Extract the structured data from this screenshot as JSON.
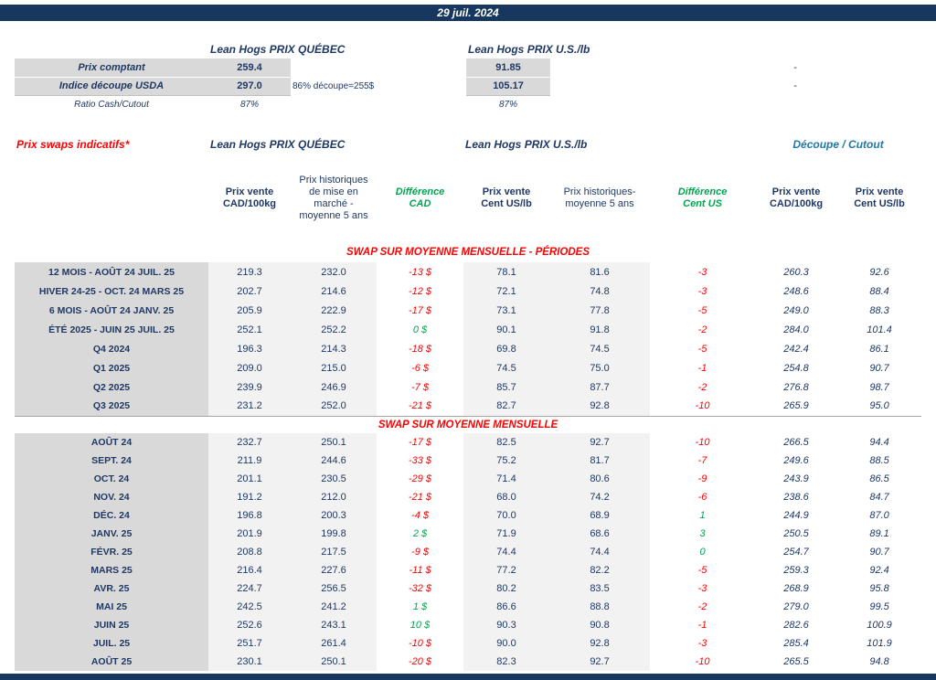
{
  "colors": {
    "navy": "#1F3864",
    "banner": "#17375E",
    "red": "#FF0000",
    "green": "#00A550",
    "teal": "#2179A5",
    "label-bg": "#D9D9D9",
    "cell-bg": "#F2F2F2",
    "rule": "#A6A6A6"
  },
  "banner": {
    "date": "29 juil. 2024"
  },
  "spot": {
    "quebec_title": "Lean Hogs PRIX QUÉBEC",
    "us_title": "Lean Hogs PRIX U.S./lb",
    "rows": [
      {
        "label": "Prix comptant",
        "qc": "259.4",
        "note": "",
        "us": "91.85",
        "dash": "-"
      },
      {
        "label": "Indice découpe USDA",
        "qc": "297.0",
        "note": "86% découpe=255$",
        "us": "105.17",
        "dash": "-"
      },
      {
        "label": "Ratio Cash/Cutout",
        "qc": "87%",
        "note": "",
        "us": "87%",
        "dash": ""
      }
    ]
  },
  "swaps": {
    "title": "Prix swaps indicatifs*",
    "quebec_title": "Lean Hogs PRIX QUÉBEC",
    "us_title": "Lean Hogs PRIX U.S./lb",
    "cutout_title": "Découpe / Cutout",
    "columns": [
      "Prix vente\nCAD/100kg",
      "Prix historiques\nde mise en\nmarché -\nmoyenne 5 ans",
      "Différence\nCAD",
      "Prix vente\nCent US/lb",
      "Prix historiques-\nmoyenne 5 ans",
      "Différence\nCent US",
      "Prix vente\nCAD/100kg",
      "Prix vente\nCent US/lb"
    ],
    "sections": [
      {
        "header": "SWAP SUR MOYENNE MENSUELLE - PÉRIODES",
        "rows": [
          {
            "label": "12 MOIS - AOÛT 24 JUIL. 25",
            "qc_sell": "219.3",
            "qc_hist": "232.0",
            "diff_cad": "-13 $",
            "us_sell": "78.1",
            "us_hist": "81.6",
            "diff_us": "-3",
            "cut_cad": "260.3",
            "cut_us": "92.6"
          },
          {
            "label": "HIVER 24-25 - OCT. 24 MARS 25",
            "qc_sell": "202.7",
            "qc_hist": "214.6",
            "diff_cad": "-12 $",
            "us_sell": "72.1",
            "us_hist": "74.8",
            "diff_us": "-3",
            "cut_cad": "248.6",
            "cut_us": "88.4"
          },
          {
            "label": "6 MOIS - AOÛT 24 JANV. 25",
            "qc_sell": "205.9",
            "qc_hist": "222.9",
            "diff_cad": "-17 $",
            "us_sell": "73.1",
            "us_hist": "77.8",
            "diff_us": "-5",
            "cut_cad": "249.0",
            "cut_us": "88.3"
          },
          {
            "label": "ÉTÉ 2025 - JUIN 25 JUIL. 25",
            "qc_sell": "252.1",
            "qc_hist": "252.2",
            "diff_cad": "0 $",
            "us_sell": "90.1",
            "us_hist": "91.8",
            "diff_us": "-2",
            "cut_cad": "284.0",
            "cut_us": "101.4"
          },
          {
            "label": "Q4 2024",
            "qc_sell": "196.3",
            "qc_hist": "214.3",
            "diff_cad": "-18 $",
            "us_sell": "69.8",
            "us_hist": "74.5",
            "diff_us": "-5",
            "cut_cad": "242.4",
            "cut_us": "86.1"
          },
          {
            "label": "Q1 2025",
            "qc_sell": "209.0",
            "qc_hist": "215.0",
            "diff_cad": "-6 $",
            "us_sell": "74.5",
            "us_hist": "75.0",
            "diff_us": "-1",
            "cut_cad": "254.8",
            "cut_us": "90.7"
          },
          {
            "label": "Q2 2025",
            "qc_sell": "239.9",
            "qc_hist": "246.9",
            "diff_cad": "-7 $",
            "us_sell": "85.7",
            "us_hist": "87.7",
            "diff_us": "-2",
            "cut_cad": "276.8",
            "cut_us": "98.7"
          },
          {
            "label": "Q3 2025",
            "qc_sell": "231.2",
            "qc_hist": "252.0",
            "diff_cad": "-21 $",
            "us_sell": "82.7",
            "us_hist": "92.8",
            "diff_us": "-10",
            "cut_cad": "265.9",
            "cut_us": "95.0"
          }
        ]
      },
      {
        "header": "SWAP SUR MOYENNE MENSUELLE",
        "rows": [
          {
            "label": "AOÛT 24",
            "qc_sell": "232.7",
            "qc_hist": "250.1",
            "diff_cad": "-17 $",
            "us_sell": "82.5",
            "us_hist": "92.7",
            "diff_us": "-10",
            "cut_cad": "266.5",
            "cut_us": "94.4"
          },
          {
            "label": "SEPT. 24",
            "qc_sell": "211.9",
            "qc_hist": "244.6",
            "diff_cad": "-33 $",
            "us_sell": "75.2",
            "us_hist": "81.7",
            "diff_us": "-7",
            "cut_cad": "249.6",
            "cut_us": "88.5"
          },
          {
            "label": "OCT. 24",
            "qc_sell": "201.1",
            "qc_hist": "230.5",
            "diff_cad": "-29 $",
            "us_sell": "71.4",
            "us_hist": "80.6",
            "diff_us": "-9",
            "cut_cad": "243.9",
            "cut_us": "86.5"
          },
          {
            "label": "NOV. 24",
            "qc_sell": "191.2",
            "qc_hist": "212.0",
            "diff_cad": "-21 $",
            "us_sell": "68.0",
            "us_hist": "74.2",
            "diff_us": "-6",
            "cut_cad": "238.6",
            "cut_us": "84.7"
          },
          {
            "label": "DÉC. 24",
            "qc_sell": "196.8",
            "qc_hist": "200.3",
            "diff_cad": "-4 $",
            "us_sell": "70.0",
            "us_hist": "68.9",
            "diff_us": "1",
            "cut_cad": "244.9",
            "cut_us": "87.0"
          },
          {
            "label": "JANV. 25",
            "qc_sell": "201.9",
            "qc_hist": "199.8",
            "diff_cad": "2 $",
            "us_sell": "71.9",
            "us_hist": "68.6",
            "diff_us": "3",
            "cut_cad": "250.5",
            "cut_us": "89.1"
          },
          {
            "label": "FÉVR. 25",
            "qc_sell": "208.8",
            "qc_hist": "217.5",
            "diff_cad": "-9 $",
            "us_sell": "74.4",
            "us_hist": "74.4",
            "diff_us": "0",
            "cut_cad": "254.7",
            "cut_us": "90.7"
          },
          {
            "label": "MARS 25",
            "qc_sell": "216.4",
            "qc_hist": "227.6",
            "diff_cad": "-11 $",
            "us_sell": "77.2",
            "us_hist": "82.2",
            "diff_us": "-5",
            "cut_cad": "259.3",
            "cut_us": "92.4"
          },
          {
            "label": "AVR. 25",
            "qc_sell": "224.7",
            "qc_hist": "256.5",
            "diff_cad": "-32 $",
            "us_sell": "80.2",
            "us_hist": "83.5",
            "diff_us": "-3",
            "cut_cad": "268.9",
            "cut_us": "95.8"
          },
          {
            "label": "MAI 25",
            "qc_sell": "242.5",
            "qc_hist": "241.2",
            "diff_cad": "1 $",
            "us_sell": "86.6",
            "us_hist": "88.8",
            "diff_us": "-2",
            "cut_cad": "279.0",
            "cut_us": "99.5"
          },
          {
            "label": "JUIN 25",
            "qc_sell": "252.6",
            "qc_hist": "243.1",
            "diff_cad": "10 $",
            "us_sell": "90.3",
            "us_hist": "90.8",
            "diff_us": "-1",
            "cut_cad": "282.6",
            "cut_us": "100.9"
          },
          {
            "label": "JUIL. 25",
            "qc_sell": "251.7",
            "qc_hist": "261.4",
            "diff_cad": "-10 $",
            "us_sell": "90.0",
            "us_hist": "92.8",
            "diff_us": "-3",
            "cut_cad": "285.4",
            "cut_us": "101.9"
          },
          {
            "label": "AOÛT 25",
            "qc_sell": "230.1",
            "qc_hist": "250.1",
            "diff_cad": "-20 $",
            "us_sell": "82.3",
            "us_hist": "92.7",
            "diff_us": "-10",
            "cut_cad": "265.5",
            "cut_us": "94.8"
          }
        ]
      }
    ]
  }
}
